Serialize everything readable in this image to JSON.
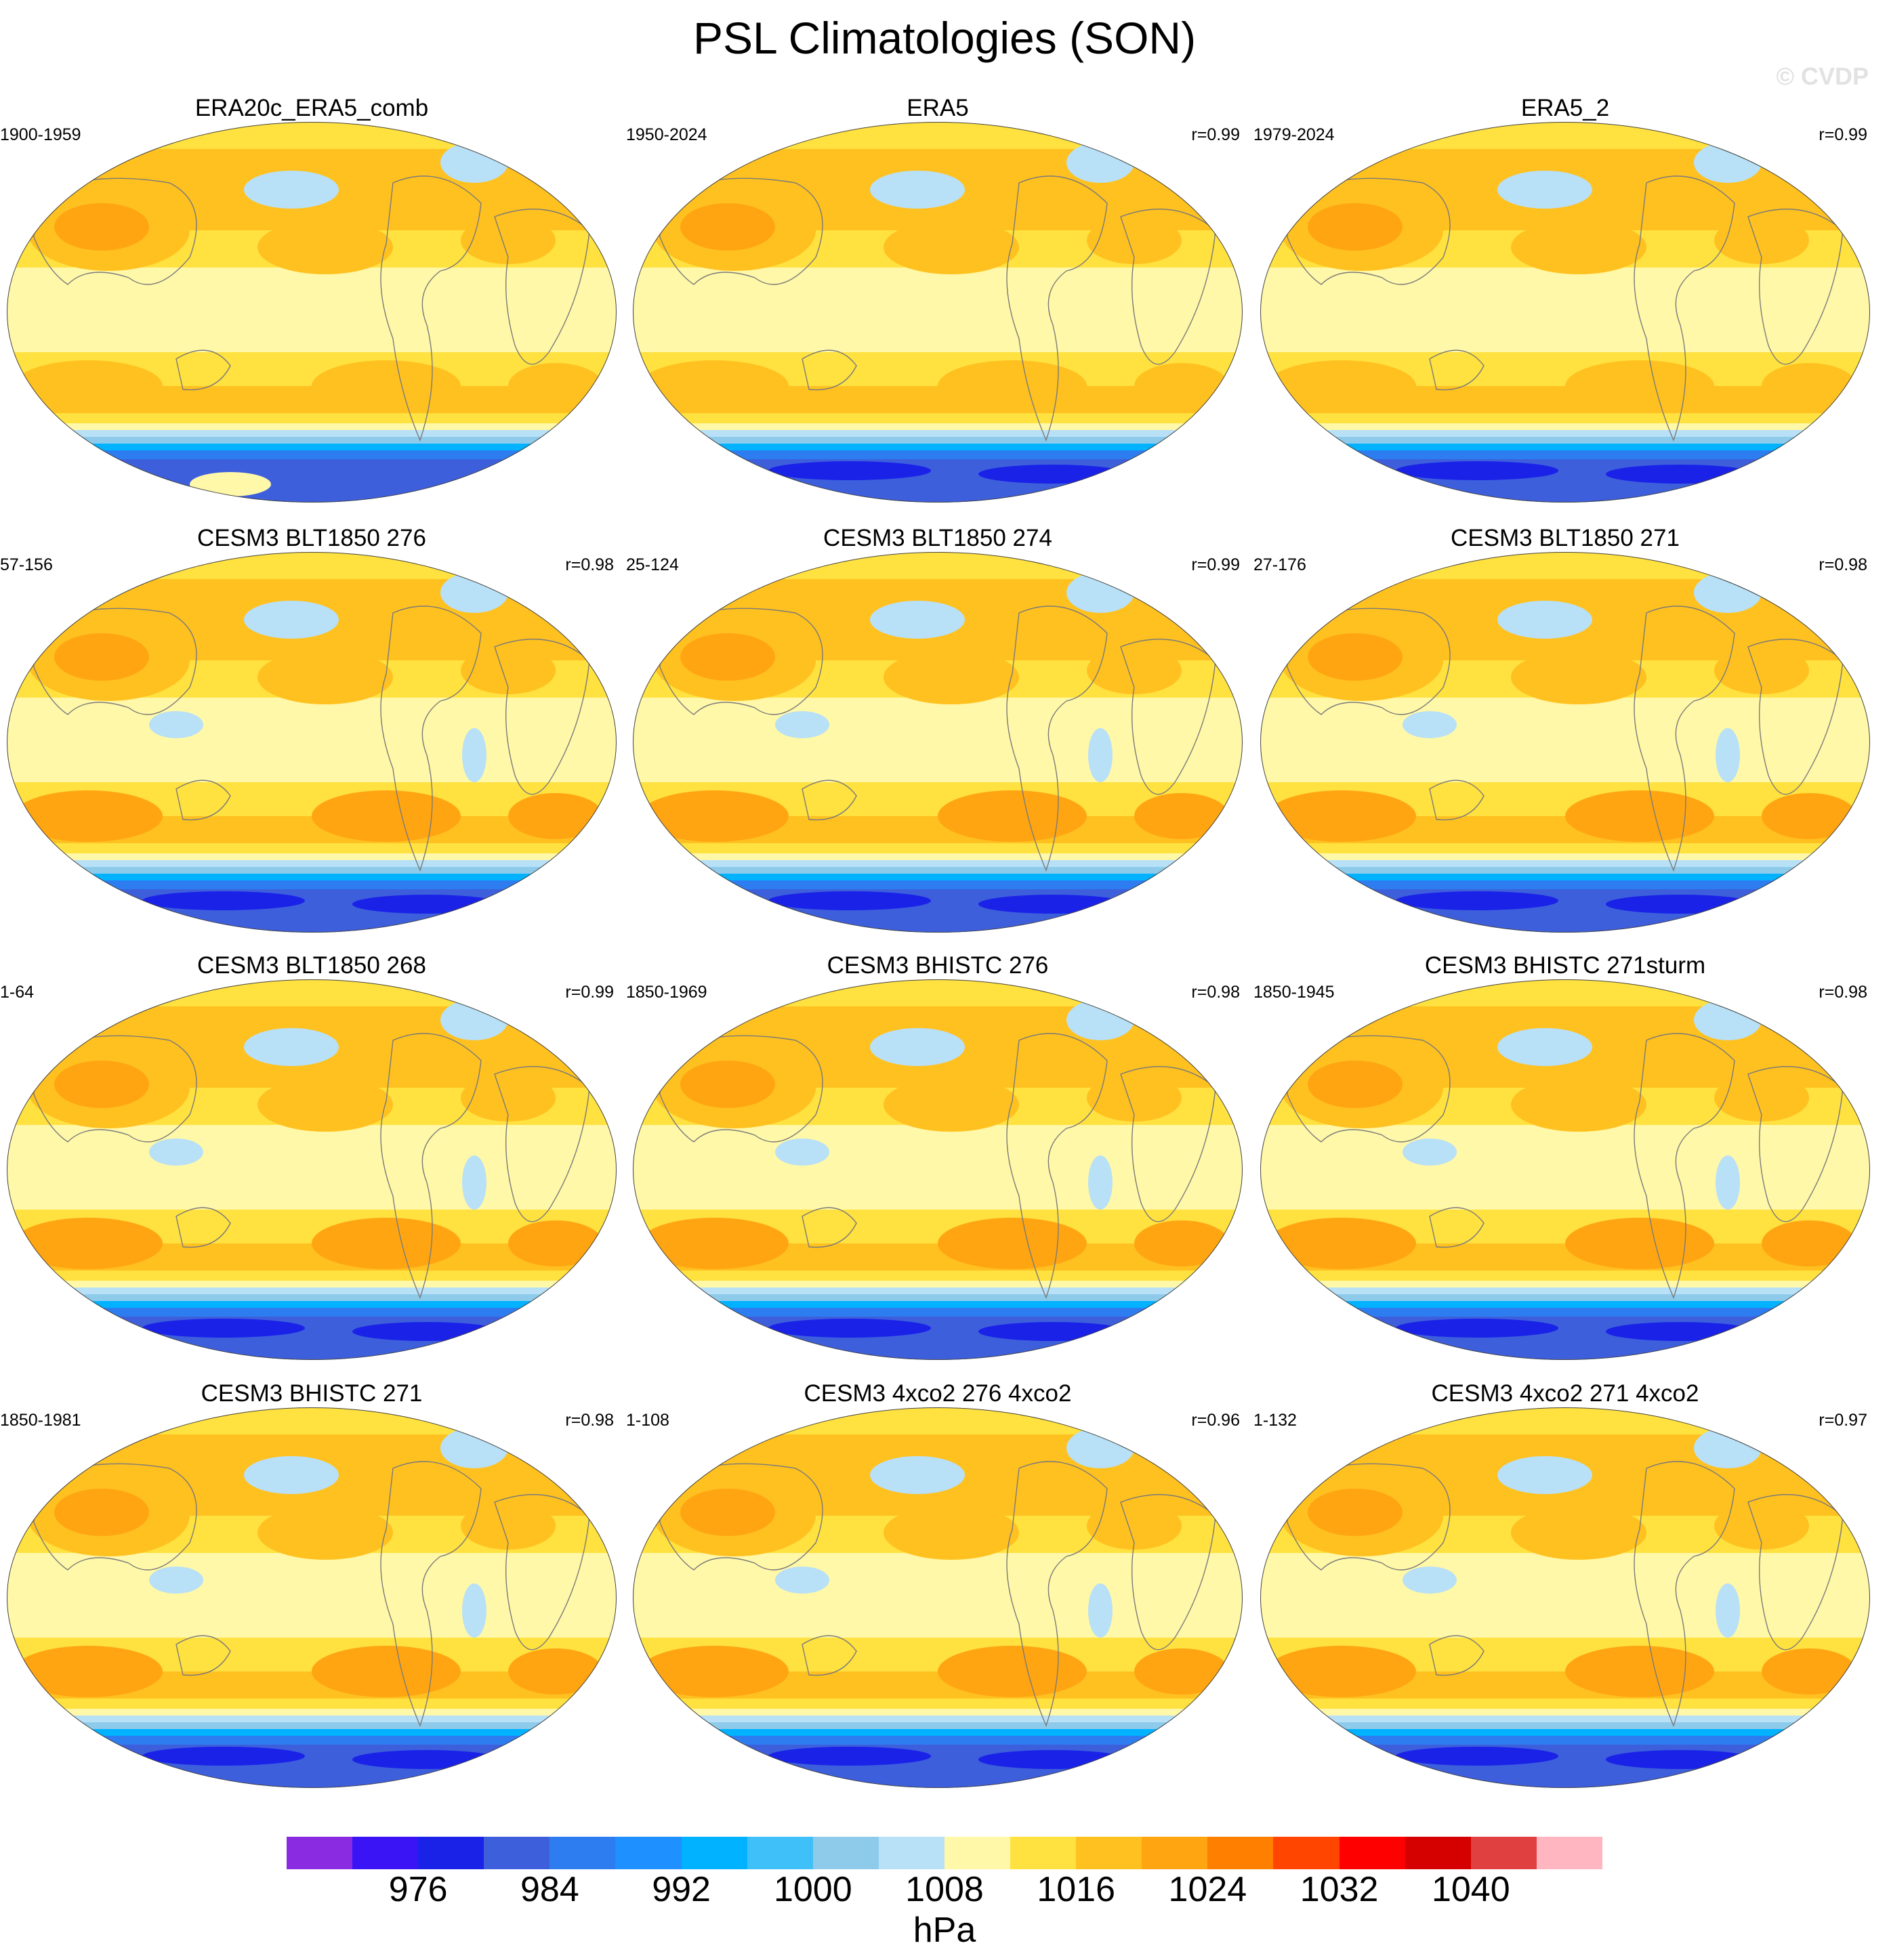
{
  "figure": {
    "title": "PSL Climatologies (SON)",
    "watermark": "© CVDP"
  },
  "panels": [
    {
      "title": "ERA20c_ERA5_comb",
      "years": "1900-1959",
      "r": "",
      "antarctic": "weak"
    },
    {
      "title": "ERA5",
      "years": "1950-2024",
      "r": "r=0.99",
      "antarctic": "deep"
    },
    {
      "title": "ERA5_2",
      "years": "1979-2024",
      "r": "r=0.99",
      "antarctic": "deep"
    },
    {
      "title": "CESM3 BLT1850 276",
      "years": "57-156",
      "r": "r=0.98",
      "antarctic": "model"
    },
    {
      "title": "CESM3 BLT1850 274",
      "years": "25-124",
      "r": "r=0.99",
      "antarctic": "model"
    },
    {
      "title": "CESM3 BLT1850 271",
      "years": "27-176",
      "r": "r=0.98",
      "antarctic": "model"
    },
    {
      "title": "CESM3 BLT1850 268",
      "years": "1-64",
      "r": "r=0.99",
      "antarctic": "model"
    },
    {
      "title": "CESM3 BHISTC 276",
      "years": "1850-1969",
      "r": "r=0.98",
      "antarctic": "model"
    },
    {
      "title": "CESM3 BHISTC 271sturm",
      "years": "1850-1945",
      "r": "r=0.98",
      "antarctic": "model"
    },
    {
      "title": "CESM3 BHISTC 271",
      "years": "1850-1981",
      "r": "r=0.98",
      "antarctic": "model"
    },
    {
      "title": "CESM3 4xco2 276 4xco2",
      "years": "1-108",
      "r": "r=0.96",
      "antarctic": "deep"
    },
    {
      "title": "CESM3 4xco2 271 4xco2",
      "years": "1-132",
      "r": "r=0.97",
      "antarctic": "deep"
    }
  ],
  "colorbar": {
    "unit": "hPa",
    "colors": [
      "#8a2be2",
      "#3b14f5",
      "#1a22e8",
      "#3d5fdc",
      "#2e7df0",
      "#1e90ff",
      "#00b2ff",
      "#40c0f8",
      "#8ecbeb",
      "#b8e0f7",
      "#fff8a8",
      "#ffe140",
      "#ffc120",
      "#ffa512",
      "#ff7f00",
      "#ff4500",
      "#ff0000",
      "#d50000",
      "#e04040",
      "#ffb6c1"
    ],
    "labels": [
      "976",
      "984",
      "992",
      "1000",
      "1008",
      "1016",
      "1024",
      "1032",
      "1040"
    ]
  }
}
